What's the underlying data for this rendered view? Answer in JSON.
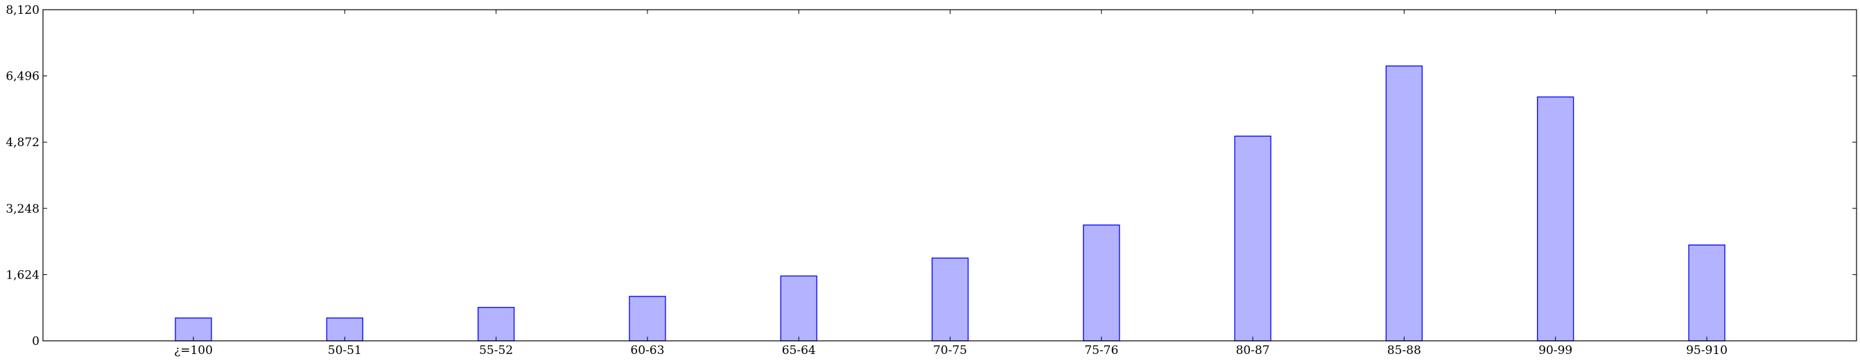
{
  "chart_data": {
    "type": "bar",
    "title": "",
    "xlabel": "",
    "ylabel": "",
    "categories": [
      "¿=100",
      "50-51",
      "55-52",
      "60-63",
      "65-64",
      "70-75",
      "75-76",
      "80-87",
      "85-88",
      "90-99",
      "95-910"
    ],
    "values": [
      560,
      560,
      820,
      1090,
      1590,
      2030,
      2840,
      5020,
      6740,
      5980,
      2350
    ],
    "ylim": [
      0,
      8120
    ],
    "yticks": [
      0,
      1624,
      3248,
      4872,
      6496,
      8120
    ],
    "ytick_labels": [
      "0",
      "1,624",
      "3,248",
      "4,872",
      "6,496",
      "8,120"
    ],
    "grid": false,
    "colors": {
      "bar_fill": "#b3b3ff",
      "bar_stroke": "#0000ff"
    }
  }
}
